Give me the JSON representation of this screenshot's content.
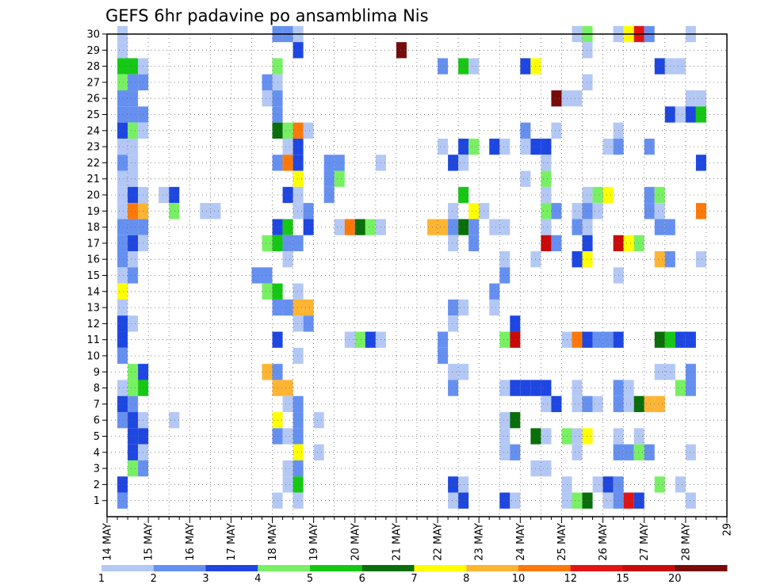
{
  "chart_data": {
    "type": "heatmap",
    "title": "GEFS 6hr padavine po ansamblima Nis",
    "x_tick_labels": [
      "14 MAY",
      "15 MAY",
      "16 MAY",
      "17 MAY",
      "18 MAY",
      "19 MAY",
      "20 MAY",
      "21 MAY",
      "22 MAY",
      "23 MAY",
      "24 MAY",
      "25 MAY",
      "26 MAY",
      "27 MAY",
      "28 MAY",
      "29"
    ],
    "y_tick_labels": [
      "1",
      "2",
      "3",
      "4",
      "5",
      "6",
      "7",
      "8",
      "9",
      "10",
      "11",
      "12",
      "13",
      "14",
      "15",
      "16",
      "17",
      "18",
      "19",
      "20",
      "21",
      "22",
      "23",
      "24",
      "25",
      "26",
      "27",
      "28",
      "29",
      "30"
    ],
    "x_range_days": [
      0,
      15
    ],
    "y_range": [
      0,
      30
    ],
    "grid": true,
    "legend": {
      "placement": "bottom",
      "labels": [
        "1",
        "2",
        "3",
        "4",
        "5",
        "6",
        "7",
        "8",
        "10",
        "12",
        "15",
        "20"
      ],
      "colors": [
        "#b4c8f5",
        "#6690f0",
        "#1e46e1",
        "#78f064",
        "#14c814",
        "#0a6e0a",
        "#ffff00",
        "#ffb432",
        "#ff780a",
        "#e11414",
        "#c80a0a",
        "#780a0a"
      ]
    },
    "cell_width_days": 0.25,
    "cells": [
      [
        0.25,
        30,
        0
      ],
      [
        0.25,
        29,
        0
      ],
      [
        0.25,
        28,
        4
      ],
      [
        0.25,
        27,
        3
      ],
      [
        0.25,
        26,
        1
      ],
      [
        0.25,
        25,
        1
      ],
      [
        0.25,
        24,
        2
      ],
      [
        0.25,
        23,
        0
      ],
      [
        0.25,
        22,
        1
      ],
      [
        0.25,
        21,
        0
      ],
      [
        0.25,
        20,
        0
      ],
      [
        0.25,
        19,
        0
      ],
      [
        0.25,
        18,
        1
      ],
      [
        0.25,
        17,
        1
      ],
      [
        0.25,
        16,
        1
      ],
      [
        0.25,
        15,
        0
      ],
      [
        0.25,
        14,
        6
      ],
      [
        0.25,
        13,
        0
      ],
      [
        0.25,
        12,
        2
      ],
      [
        0.25,
        11,
        2
      ],
      [
        0.25,
        10,
        1
      ],
      [
        0.25,
        8,
        0
      ],
      [
        0.25,
        7,
        2
      ],
      [
        0.25,
        6,
        1
      ],
      [
        0.25,
        2,
        2
      ],
      [
        0.25,
        1,
        1
      ],
      [
        0.5,
        28,
        4
      ],
      [
        0.5,
        27,
        1
      ],
      [
        0.5,
        26,
        1
      ],
      [
        0.5,
        25,
        1
      ],
      [
        0.5,
        24,
        3
      ],
      [
        0.5,
        23,
        0
      ],
      [
        0.5,
        22,
        0
      ],
      [
        0.5,
        21,
        0
      ],
      [
        0.5,
        20,
        2
      ],
      [
        0.5,
        19,
        8
      ],
      [
        0.5,
        18,
        1
      ],
      [
        0.5,
        17,
        2
      ],
      [
        0.5,
        16,
        0
      ],
      [
        0.5,
        15,
        1
      ],
      [
        0.5,
        12,
        0
      ],
      [
        0.5,
        9,
        3
      ],
      [
        0.5,
        8,
        3
      ],
      [
        0.5,
        7,
        1
      ],
      [
        0.5,
        6,
        2
      ],
      [
        0.5,
        5,
        2
      ],
      [
        0.5,
        4,
        2
      ],
      [
        0.5,
        3,
        3
      ],
      [
        0.75,
        28,
        0
      ],
      [
        0.75,
        27,
        1
      ],
      [
        0.75,
        25,
        1
      ],
      [
        0.75,
        24,
        0
      ],
      [
        0.75,
        20,
        0
      ],
      [
        0.75,
        19,
        7
      ],
      [
        0.75,
        18,
        1
      ],
      [
        0.75,
        17,
        0
      ],
      [
        0.75,
        9,
        2
      ],
      [
        0.75,
        8,
        4
      ],
      [
        0.75,
        6,
        0
      ],
      [
        0.75,
        5,
        2
      ],
      [
        0.75,
        4,
        0
      ],
      [
        0.75,
        3,
        1
      ],
      [
        1.25,
        20,
        0
      ],
      [
        1.5,
        20,
        2
      ],
      [
        1.5,
        19,
        3
      ],
      [
        1.5,
        6,
        0
      ],
      [
        2.25,
        19,
        0
      ],
      [
        2.5,
        19,
        0
      ],
      [
        3.5,
        15,
        1
      ],
      [
        3.75,
        15,
        1
      ],
      [
        3.75,
        27,
        1
      ],
      [
        3.75,
        26,
        0
      ],
      [
        3.75,
        17,
        3
      ],
      [
        3.75,
        14,
        3
      ],
      [
        3.75,
        9,
        7
      ],
      [
        4.0,
        30,
        1
      ],
      [
        4.0,
        28,
        3
      ],
      [
        4.0,
        27,
        0
      ],
      [
        4.0,
        26,
        1
      ],
      [
        4.0,
        25,
        1
      ],
      [
        4.0,
        24,
        5
      ],
      [
        4.0,
        22,
        1
      ],
      [
        4.0,
        18,
        2
      ],
      [
        4.0,
        17,
        4
      ],
      [
        4.0,
        14,
        4
      ],
      [
        4.0,
        13,
        1
      ],
      [
        4.0,
        11,
        2
      ],
      [
        4.0,
        9,
        1
      ],
      [
        4.0,
        8,
        7
      ],
      [
        4.0,
        6,
        6
      ],
      [
        4.0,
        5,
        1
      ],
      [
        4.0,
        1,
        0
      ],
      [
        4.25,
        30,
        1
      ],
      [
        4.25,
        24,
        3
      ],
      [
        4.25,
        23,
        0
      ],
      [
        4.25,
        22,
        8
      ],
      [
        4.25,
        20,
        2
      ],
      [
        4.25,
        18,
        4
      ],
      [
        4.25,
        17,
        1
      ],
      [
        4.25,
        16,
        0
      ],
      [
        4.25,
        13,
        1
      ],
      [
        4.25,
        8,
        7
      ],
      [
        4.25,
        7,
        0
      ],
      [
        4.25,
        5,
        0
      ],
      [
        4.25,
        3,
        0
      ],
      [
        4.25,
        2,
        0
      ],
      [
        4.5,
        30,
        0
      ],
      [
        4.5,
        29,
        2
      ],
      [
        4.5,
        24,
        8
      ],
      [
        4.5,
        23,
        2
      ],
      [
        4.5,
        22,
        2
      ],
      [
        4.5,
        21,
        6
      ],
      [
        4.5,
        20,
        0
      ],
      [
        4.5,
        19,
        0
      ],
      [
        4.5,
        17,
        1
      ],
      [
        4.5,
        14,
        0
      ],
      [
        4.5,
        13,
        7
      ],
      [
        4.5,
        12,
        0
      ],
      [
        4.5,
        10,
        0
      ],
      [
        4.5,
        7,
        1
      ],
      [
        4.5,
        6,
        1
      ],
      [
        4.5,
        5,
        1
      ],
      [
        4.5,
        4,
        6
      ],
      [
        4.5,
        3,
        1
      ],
      [
        4.5,
        2,
        4
      ],
      [
        4.5,
        1,
        0
      ],
      [
        4.75,
        24,
        0
      ],
      [
        4.75,
        19,
        1
      ],
      [
        4.75,
        18,
        2
      ],
      [
        4.75,
        13,
        7
      ],
      [
        4.75,
        12,
        1
      ],
      [
        5.0,
        4,
        0
      ],
      [
        5.0,
        6,
        0
      ],
      [
        5.25,
        22,
        1
      ],
      [
        5.25,
        21,
        1
      ],
      [
        5.25,
        20,
        1
      ],
      [
        5.5,
        22,
        1
      ],
      [
        5.5,
        21,
        3
      ],
      [
        5.5,
        18,
        0
      ],
      [
        5.75,
        18,
        8
      ],
      [
        6.0,
        18,
        5
      ],
      [
        6.25,
        18,
        3
      ],
      [
        5.75,
        11,
        0
      ],
      [
        6.0,
        11,
        3
      ],
      [
        6.25,
        11,
        2
      ],
      [
        6.5,
        11,
        0
      ],
      [
        6.5,
        22,
        0
      ],
      [
        6.5,
        18,
        0
      ],
      [
        7.0,
        29,
        11
      ],
      [
        7.75,
        18,
        7
      ],
      [
        8.0,
        18,
        7
      ],
      [
        8.0,
        28,
        1
      ],
      [
        8.0,
        11,
        1
      ],
      [
        8.0,
        10,
        1
      ],
      [
        8.0,
        23,
        0
      ],
      [
        8.25,
        19,
        0
      ],
      [
        8.25,
        18,
        1
      ],
      [
        8.25,
        17,
        0
      ],
      [
        8.25,
        13,
        1
      ],
      [
        8.25,
        12,
        0
      ],
      [
        8.25,
        9,
        0
      ],
      [
        8.25,
        8,
        1
      ],
      [
        8.25,
        2,
        2
      ],
      [
        8.25,
        1,
        0
      ],
      [
        8.25,
        22,
        2
      ],
      [
        8.5,
        28,
        4
      ],
      [
        8.5,
        23,
        2
      ],
      [
        8.5,
        22,
        0
      ],
      [
        8.5,
        20,
        4
      ],
      [
        8.5,
        18,
        5
      ],
      [
        8.5,
        13,
        0
      ],
      [
        8.5,
        9,
        0
      ],
      [
        8.5,
        2,
        0
      ],
      [
        8.5,
        1,
        2
      ],
      [
        8.75,
        28,
        0
      ],
      [
        8.75,
        23,
        3
      ],
      [
        8.75,
        19,
        6
      ],
      [
        8.75,
        18,
        1
      ],
      [
        8.75,
        17,
        1
      ],
      [
        9.0,
        19,
        0
      ],
      [
        9.25,
        23,
        2
      ],
      [
        9.25,
        18,
        0
      ],
      [
        9.25,
        14,
        1
      ],
      [
        9.25,
        13,
        0
      ],
      [
        9.5,
        23,
        0
      ],
      [
        9.5,
        18,
        0
      ],
      [
        9.5,
        16,
        0
      ],
      [
        9.5,
        15,
        1
      ],
      [
        9.5,
        11,
        3
      ],
      [
        9.5,
        8,
        0
      ],
      [
        9.5,
        6,
        0
      ],
      [
        9.5,
        5,
        0
      ],
      [
        9.5,
        4,
        0
      ],
      [
        9.5,
        1,
        2
      ],
      [
        9.75,
        12,
        2
      ],
      [
        9.75,
        11,
        10
      ],
      [
        9.75,
        8,
        2
      ],
      [
        9.75,
        6,
        5
      ],
      [
        9.75,
        4,
        1
      ],
      [
        9.75,
        1,
        0
      ],
      [
        10.0,
        28,
        2
      ],
      [
        10.0,
        24,
        1
      ],
      [
        10.0,
        23,
        0
      ],
      [
        10.0,
        21,
        0
      ],
      [
        10.0,
        8,
        2
      ],
      [
        10.25,
        28,
        6
      ],
      [
        10.25,
        23,
        2
      ],
      [
        10.25,
        16,
        0
      ],
      [
        10.25,
        8,
        2
      ],
      [
        10.25,
        5,
        5
      ],
      [
        10.25,
        3,
        0
      ],
      [
        10.5,
        23,
        2
      ],
      [
        10.5,
        22,
        0
      ],
      [
        10.5,
        21,
        3
      ],
      [
        10.5,
        20,
        0
      ],
      [
        10.5,
        19,
        3
      ],
      [
        10.5,
        18,
        0
      ],
      [
        10.5,
        17,
        10
      ],
      [
        10.5,
        8,
        2
      ],
      [
        10.5,
        7,
        0
      ],
      [
        10.5,
        5,
        0
      ],
      [
        10.5,
        3,
        0
      ],
      [
        10.75,
        26,
        11
      ],
      [
        10.75,
        24,
        0
      ],
      [
        10.75,
        19,
        1
      ],
      [
        10.75,
        17,
        1
      ],
      [
        10.75,
        7,
        2
      ],
      [
        11.0,
        26,
        0
      ],
      [
        11.0,
        11,
        0
      ],
      [
        11.0,
        5,
        3
      ],
      [
        11.0,
        2,
        0
      ],
      [
        11.0,
        1,
        0
      ],
      [
        11.25,
        30,
        0
      ],
      [
        11.25,
        26,
        0
      ],
      [
        11.25,
        19,
        0
      ],
      [
        11.25,
        18,
        1
      ],
      [
        11.25,
        16,
        2
      ],
      [
        11.25,
        11,
        8
      ],
      [
        11.25,
        8,
        0
      ],
      [
        11.25,
        7,
        0
      ],
      [
        11.25,
        5,
        0
      ],
      [
        11.25,
        4,
        0
      ],
      [
        11.25,
        1,
        3
      ],
      [
        11.5,
        30,
        3
      ],
      [
        11.5,
        29,
        0
      ],
      [
        11.5,
        27,
        0
      ],
      [
        11.5,
        20,
        0
      ],
      [
        11.5,
        19,
        1
      ],
      [
        11.5,
        18,
        0
      ],
      [
        11.5,
        17,
        2
      ],
      [
        11.5,
        16,
        6
      ],
      [
        11.5,
        11,
        2
      ],
      [
        11.5,
        7,
        1
      ],
      [
        11.5,
        5,
        6
      ],
      [
        11.5,
        1,
        5
      ],
      [
        11.75,
        20,
        3
      ],
      [
        11.75,
        19,
        0
      ],
      [
        11.75,
        11,
        1
      ],
      [
        11.75,
        7,
        0
      ],
      [
        11.75,
        2,
        0
      ],
      [
        12.0,
        20,
        6
      ],
      [
        12.0,
        23,
        0
      ],
      [
        12.0,
        11,
        1
      ],
      [
        12.0,
        2,
        2
      ],
      [
        12.0,
        1,
        0
      ],
      [
        12.25,
        30,
        0
      ],
      [
        12.25,
        24,
        0
      ],
      [
        12.25,
        23,
        1
      ],
      [
        12.25,
        17,
        10
      ],
      [
        12.25,
        15,
        0
      ],
      [
        12.25,
        11,
        2
      ],
      [
        12.25,
        8,
        1
      ],
      [
        12.25,
        7,
        1
      ],
      [
        12.25,
        5,
        0
      ],
      [
        12.25,
        4,
        1
      ],
      [
        12.25,
        2,
        1
      ],
      [
        12.25,
        1,
        1
      ],
      [
        12.5,
        30,
        6
      ],
      [
        12.5,
        17,
        6
      ],
      [
        12.5,
        8,
        0
      ],
      [
        12.5,
        7,
        0
      ],
      [
        12.5,
        4,
        1
      ],
      [
        12.5,
        1,
        9
      ],
      [
        12.75,
        30,
        9
      ],
      [
        12.75,
        17,
        3
      ],
      [
        12.75,
        7,
        5
      ],
      [
        12.75,
        5,
        0
      ],
      [
        12.75,
        4,
        3
      ],
      [
        12.75,
        1,
        2
      ],
      [
        13.0,
        30,
        1
      ],
      [
        13.0,
        23,
        1
      ],
      [
        13.0,
        20,
        1
      ],
      [
        13.0,
        19,
        1
      ],
      [
        13.0,
        7,
        7
      ],
      [
        13.0,
        4,
        1
      ],
      [
        13.25,
        28,
        2
      ],
      [
        13.25,
        20,
        3
      ],
      [
        13.25,
        19,
        0
      ],
      [
        13.25,
        18,
        1
      ],
      [
        13.25,
        16,
        7
      ],
      [
        13.25,
        11,
        5
      ],
      [
        13.25,
        9,
        0
      ],
      [
        13.25,
        7,
        7
      ],
      [
        13.25,
        2,
        3
      ],
      [
        13.5,
        28,
        0
      ],
      [
        13.5,
        25,
        2
      ],
      [
        13.5,
        18,
        1
      ],
      [
        13.5,
        16,
        1
      ],
      [
        13.5,
        11,
        4
      ],
      [
        13.5,
        9,
        0
      ],
      [
        13.75,
        28,
        0
      ],
      [
        13.75,
        25,
        0
      ],
      [
        13.75,
        11,
        2
      ],
      [
        13.75,
        8,
        3
      ],
      [
        13.75,
        2,
        0
      ],
      [
        14.0,
        30,
        0
      ],
      [
        14.0,
        26,
        0
      ],
      [
        14.0,
        25,
        2
      ],
      [
        14.0,
        11,
        2
      ],
      [
        14.0,
        9,
        1
      ],
      [
        14.0,
        8,
        1
      ],
      [
        14.0,
        4,
        0
      ],
      [
        14.0,
        1,
        0
      ],
      [
        14.25,
        26,
        0
      ],
      [
        14.25,
        25,
        4
      ],
      [
        14.25,
        22,
        2
      ],
      [
        14.25,
        19,
        8
      ],
      [
        14.25,
        16,
        0
      ]
    ]
  }
}
